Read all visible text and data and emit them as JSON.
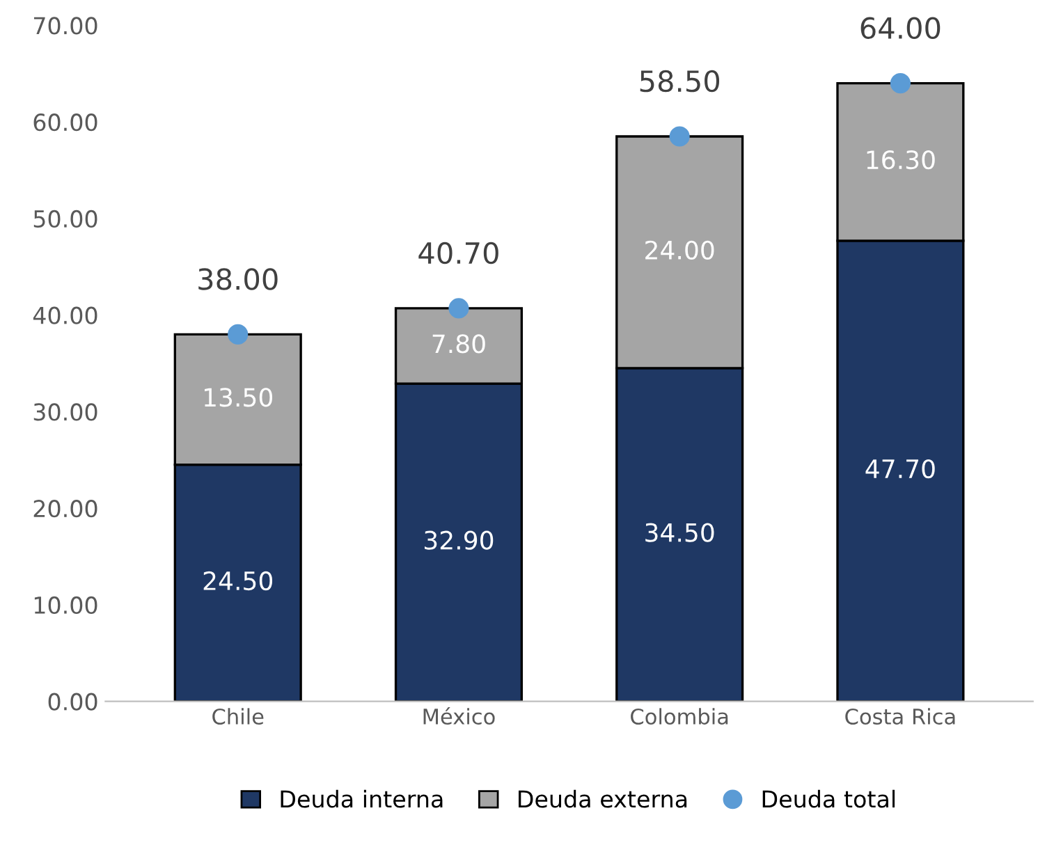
{
  "chart_data": {
    "type": "bar",
    "stacked": true,
    "categories": [
      "Chile",
      "México",
      "Colombia",
      "Costa Rica"
    ],
    "series": [
      {
        "name": "Deuda interna",
        "color": "#1f3864",
        "values": [
          24.5,
          32.9,
          34.5,
          47.7
        ],
        "value_labels": [
          "24.50",
          "32.90",
          "34.50",
          "47.70"
        ]
      },
      {
        "name": "Deuda externa",
        "color": "#a5a5a5",
        "values": [
          13.5,
          7.8,
          24.0,
          16.3
        ],
        "value_labels": [
          "13.50",
          "7.80",
          "24.00",
          "16.30"
        ]
      },
      {
        "name": "Deuda total",
        "type": "scatter",
        "color": "#5b9bd5",
        "x": [
          "Chile",
          "México",
          "Colombia",
          "Costa Rica"
        ],
        "values": [
          38.0,
          40.7,
          58.5,
          64.0
        ],
        "value_labels": [
          "38.00",
          "40.70",
          "58.50",
          "64.00"
        ]
      }
    ],
    "ylim": [
      0,
      70
    ],
    "yticks": [
      {
        "value": 0,
        "label": "0.00"
      },
      {
        "value": 10,
        "label": "10.00"
      },
      {
        "value": 20,
        "label": "20.00"
      },
      {
        "value": 30,
        "label": "30.00"
      },
      {
        "value": 40,
        "label": "40.00"
      },
      {
        "value": 50,
        "label": "50.00"
      },
      {
        "value": 60,
        "label": "60.00"
      },
      {
        "value": 70,
        "label": "70.00"
      }
    ],
    "grid": false,
    "legend": "bottom",
    "marker": "circle"
  }
}
